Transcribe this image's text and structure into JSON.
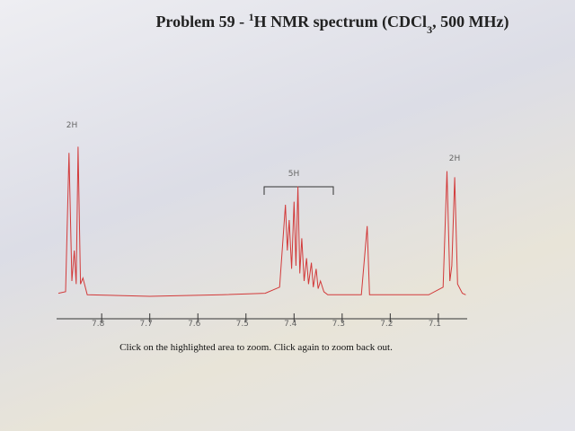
{
  "title": {
    "part1": "Problem 59 - ",
    "sup": "1",
    "part2": "H NMR spectrum (CDCl",
    "sub": "3",
    "part3": ", 500 MHz)"
  },
  "chart_data": {
    "type": "line",
    "color": "#d23a3a",
    "x": [
      7.89,
      7.875,
      7.868,
      7.862,
      7.857,
      7.853,
      7.849,
      7.844,
      7.839,
      7.83,
      7.7,
      7.55,
      7.46,
      7.43,
      7.418,
      7.414,
      7.41,
      7.405,
      7.4,
      7.396,
      7.392,
      7.388,
      7.384,
      7.379,
      7.374,
      7.37,
      7.364,
      7.36,
      7.354,
      7.35,
      7.345,
      7.338,
      7.33,
      7.26,
      7.248,
      7.243,
      7.12,
      7.09,
      7.082,
      7.076,
      7.072,
      7.066,
      7.06,
      7.05,
      7.043
    ],
    "values": [
      2,
      3,
      94,
      10,
      30,
      8,
      98,
      8,
      12,
      1,
      0,
      1,
      2,
      6,
      60,
      30,
      50,
      18,
      62,
      20,
      72,
      15,
      38,
      10,
      25,
      8,
      22,
      6,
      18,
      5,
      10,
      3,
      1,
      1,
      46,
      1,
      1,
      6,
      82,
      10,
      20,
      78,
      8,
      2,
      1
    ],
    "xlim": [
      7.89,
      7.04
    ],
    "ylim": [
      0,
      100
    ],
    "xticks": [
      7.8,
      7.7,
      7.6,
      7.5,
      7.4,
      7.3,
      7.2,
      7.1
    ],
    "annotations": [
      "2H",
      "5H",
      "2H"
    ]
  },
  "instructions": "Click on the highlighted area to zoom. Click again to zoom back out."
}
